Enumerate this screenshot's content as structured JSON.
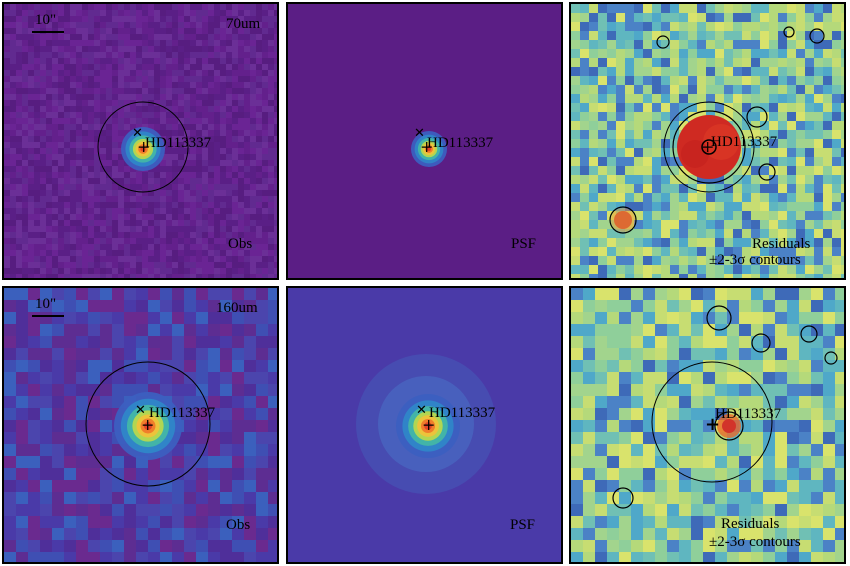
{
  "figure": {
    "rows": [
      {
        "band_label": "70um",
        "scale_label": "10\"",
        "panels": [
          {
            "kind": "obs",
            "corner_label": "Obs",
            "target": "HD113337",
            "palette": "purple"
          },
          {
            "kind": "psf",
            "corner_label": "PSF",
            "target": "HD113337",
            "palette": "purple"
          },
          {
            "kind": "residual",
            "corner_label_1": "Residuals",
            "corner_label_2": "±2-3σ contours",
            "target": "HD113337",
            "palette": "residual"
          }
        ]
      },
      {
        "band_label": "160um",
        "scale_label": "10\"",
        "panels": [
          {
            "kind": "obs",
            "corner_label": "Obs",
            "target": "HD113337",
            "palette": "blue"
          },
          {
            "kind": "psf",
            "corner_label": "PSF",
            "target": "HD113337",
            "palette": "blue"
          },
          {
            "kind": "residual",
            "corner_label_1": "Residuals",
            "corner_label_2": "±2-3σ contours",
            "target": "HD113337",
            "palette": "residual"
          }
        ]
      }
    ]
  }
}
